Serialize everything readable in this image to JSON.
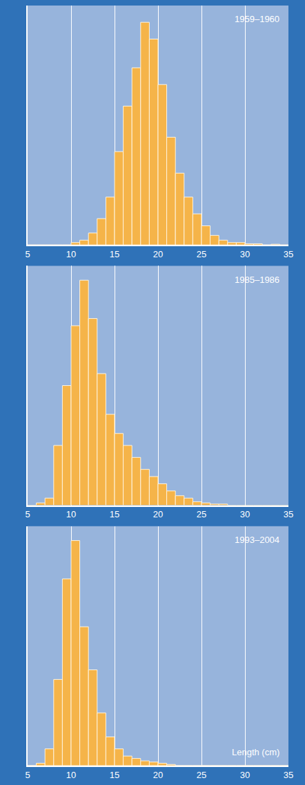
{
  "chart_data": [
    {
      "type": "histogram",
      "title": "1959–1960",
      "bins": [
        5,
        6,
        7,
        8,
        9,
        10,
        11,
        12,
        13,
        14,
        15,
        16,
        17,
        18,
        19,
        20,
        21,
        22,
        23,
        24,
        25,
        26,
        27,
        28,
        29,
        30,
        31,
        32,
        33,
        34,
        35
      ],
      "values": [
        0,
        0,
        0,
        0,
        0,
        1,
        2,
        5,
        11,
        20,
        39,
        58,
        74,
        93,
        86,
        67,
        45,
        30,
        20,
        13,
        8,
        4,
        2,
        1,
        1,
        0.5,
        0.5,
        0,
        0.3,
        0
      ],
      "color": "#f5b449",
      "xlim": [
        5,
        35
      ],
      "xticks": [
        5,
        10,
        15,
        20,
        25,
        30,
        35
      ],
      "ylim": [
        0,
        100
      ],
      "grid": true,
      "tick_labels": "x"
    },
    {
      "type": "histogram",
      "title": "1985–1986",
      "bins": [
        5,
        6,
        7,
        8,
        9,
        10,
        11,
        12,
        13,
        14,
        15,
        16,
        17,
        18,
        19,
        20,
        21,
        22,
        23,
        24,
        25,
        26,
        27,
        28,
        29,
        30,
        31,
        32,
        33,
        34,
        35
      ],
      "values": [
        0,
        1,
        3,
        25,
        50,
        75,
        94,
        78,
        55,
        38,
        30,
        25,
        20,
        15,
        12,
        9,
        6,
        4,
        3,
        1.5,
        1,
        0.5,
        0.5,
        0,
        0,
        0,
        0,
        0,
        0,
        0
      ],
      "color": "#f5b449",
      "xlim": [
        5,
        35
      ],
      "xticks": [
        5,
        10,
        15,
        20,
        25,
        30,
        35
      ],
      "ylim": [
        0,
        100
      ],
      "grid": true,
      "tick_labels": "x"
    },
    {
      "type": "histogram",
      "title": "1993–2004",
      "x_label": "Length (cm)",
      "bins": [
        5,
        6,
        7,
        8,
        9,
        10,
        11,
        12,
        13,
        14,
        15,
        16,
        17,
        18,
        19,
        20,
        21,
        22,
        23,
        24,
        25,
        26,
        27,
        28,
        29,
        30,
        31,
        32,
        33,
        34,
        35
      ],
      "values": [
        0,
        1,
        7,
        36,
        78,
        94,
        58,
        40,
        22,
        12,
        7,
        4,
        3,
        2,
        1.5,
        1,
        0.5,
        0,
        0,
        0,
        0,
        0,
        0,
        0,
        0,
        0,
        0,
        0,
        0,
        0
      ],
      "color": "#f5b449",
      "xlim": [
        5,
        35
      ],
      "xticks": [
        5,
        10,
        15,
        20,
        25,
        30,
        35
      ],
      "ylim": [
        0,
        100
      ],
      "grid": true,
      "tick_labels": "x"
    }
  ]
}
